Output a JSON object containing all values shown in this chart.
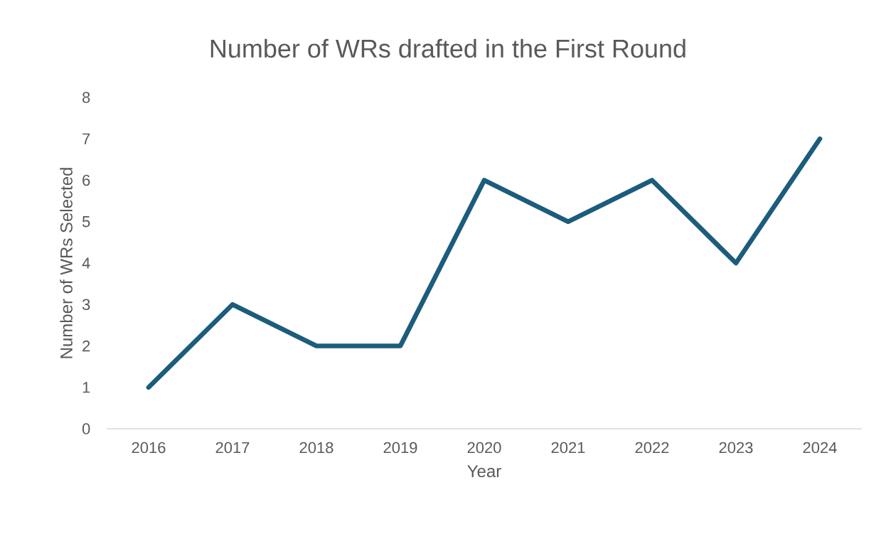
{
  "chart_data": {
    "type": "line",
    "title": "Number of WRs drafted in the First Round",
    "xlabel": "Year",
    "ylabel": "Number of WRs Selected",
    "categories": [
      "2016",
      "2017",
      "2018",
      "2019",
      "2020",
      "2021",
      "2022",
      "2023",
      "2024"
    ],
    "values": [
      1,
      3,
      2,
      2,
      6,
      5,
      6,
      4,
      7
    ],
    "color": "#1c5c7c",
    "ylim": [
      0,
      8
    ],
    "yticks": [
      0,
      1,
      2,
      3,
      4,
      5,
      6,
      7,
      8
    ]
  }
}
